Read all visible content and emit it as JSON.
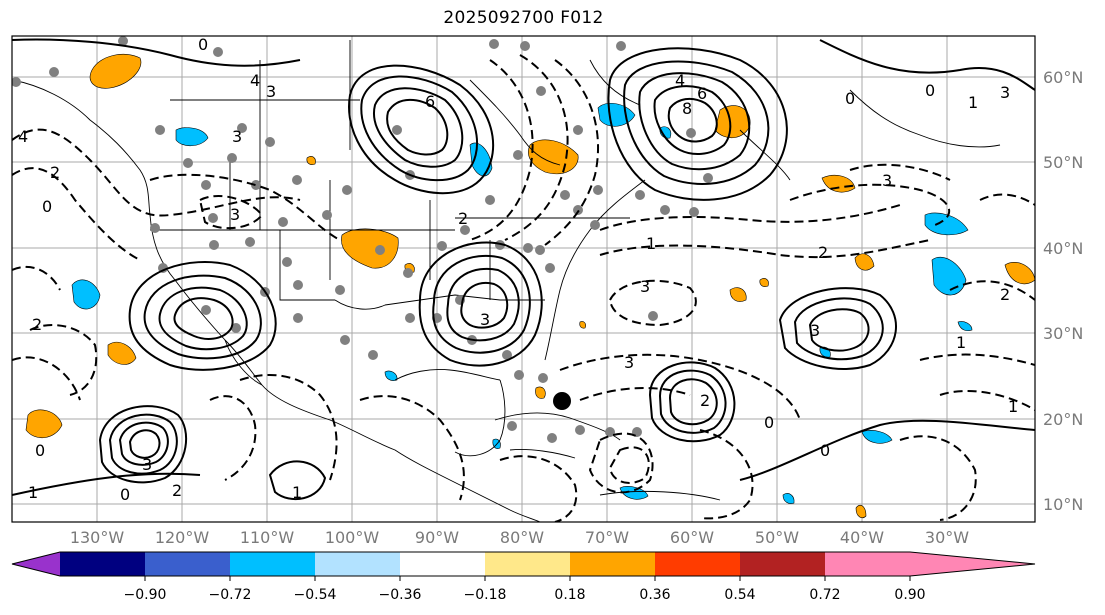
{
  "title": "2025092700 F012",
  "map": {
    "lat_labels": [
      "60°N",
      "50°N",
      "40°N",
      "30°N",
      "20°N",
      "10°N"
    ],
    "lon_labels": [
      "130°W",
      "120°W",
      "110°W",
      "100°W",
      "90°W",
      "80°W",
      "70°W",
      "60°W",
      "50°W",
      "40°W",
      "30°W"
    ],
    "contour_labels": [
      "0",
      "4",
      "3",
      "6",
      "4",
      "8",
      "6",
      "0",
      "0",
      "1",
      "3",
      "4",
      "3",
      "2",
      "0",
      "3",
      "2",
      "3",
      "1",
      "3",
      "2",
      "2",
      "3",
      "3",
      "1",
      "3",
      "3",
      "2",
      "0",
      "1",
      "0",
      "0",
      "2",
      "1",
      "0",
      "1",
      "2"
    ],
    "colors": {
      "positive_fill": "#ffa500",
      "negative_fill": "#00bfff",
      "station_dot": "#808080",
      "marker_dot": "#000000",
      "grid": "#a9a9a9"
    }
  },
  "colorbar": {
    "tick_labels": [
      "−0.90",
      "−0.72",
      "−0.54",
      "−0.36",
      "−0.18",
      "0.18",
      "0.36",
      "0.54",
      "0.72",
      "0.90"
    ],
    "colors": [
      "#9932cc",
      "#000080",
      "#3a5fcd",
      "#00bfff",
      "#b2e2ff",
      "#ffffff",
      "#ffe88a",
      "#ffa500",
      "#ff3c00",
      "#b22222",
      "#ff86b4"
    ]
  }
}
